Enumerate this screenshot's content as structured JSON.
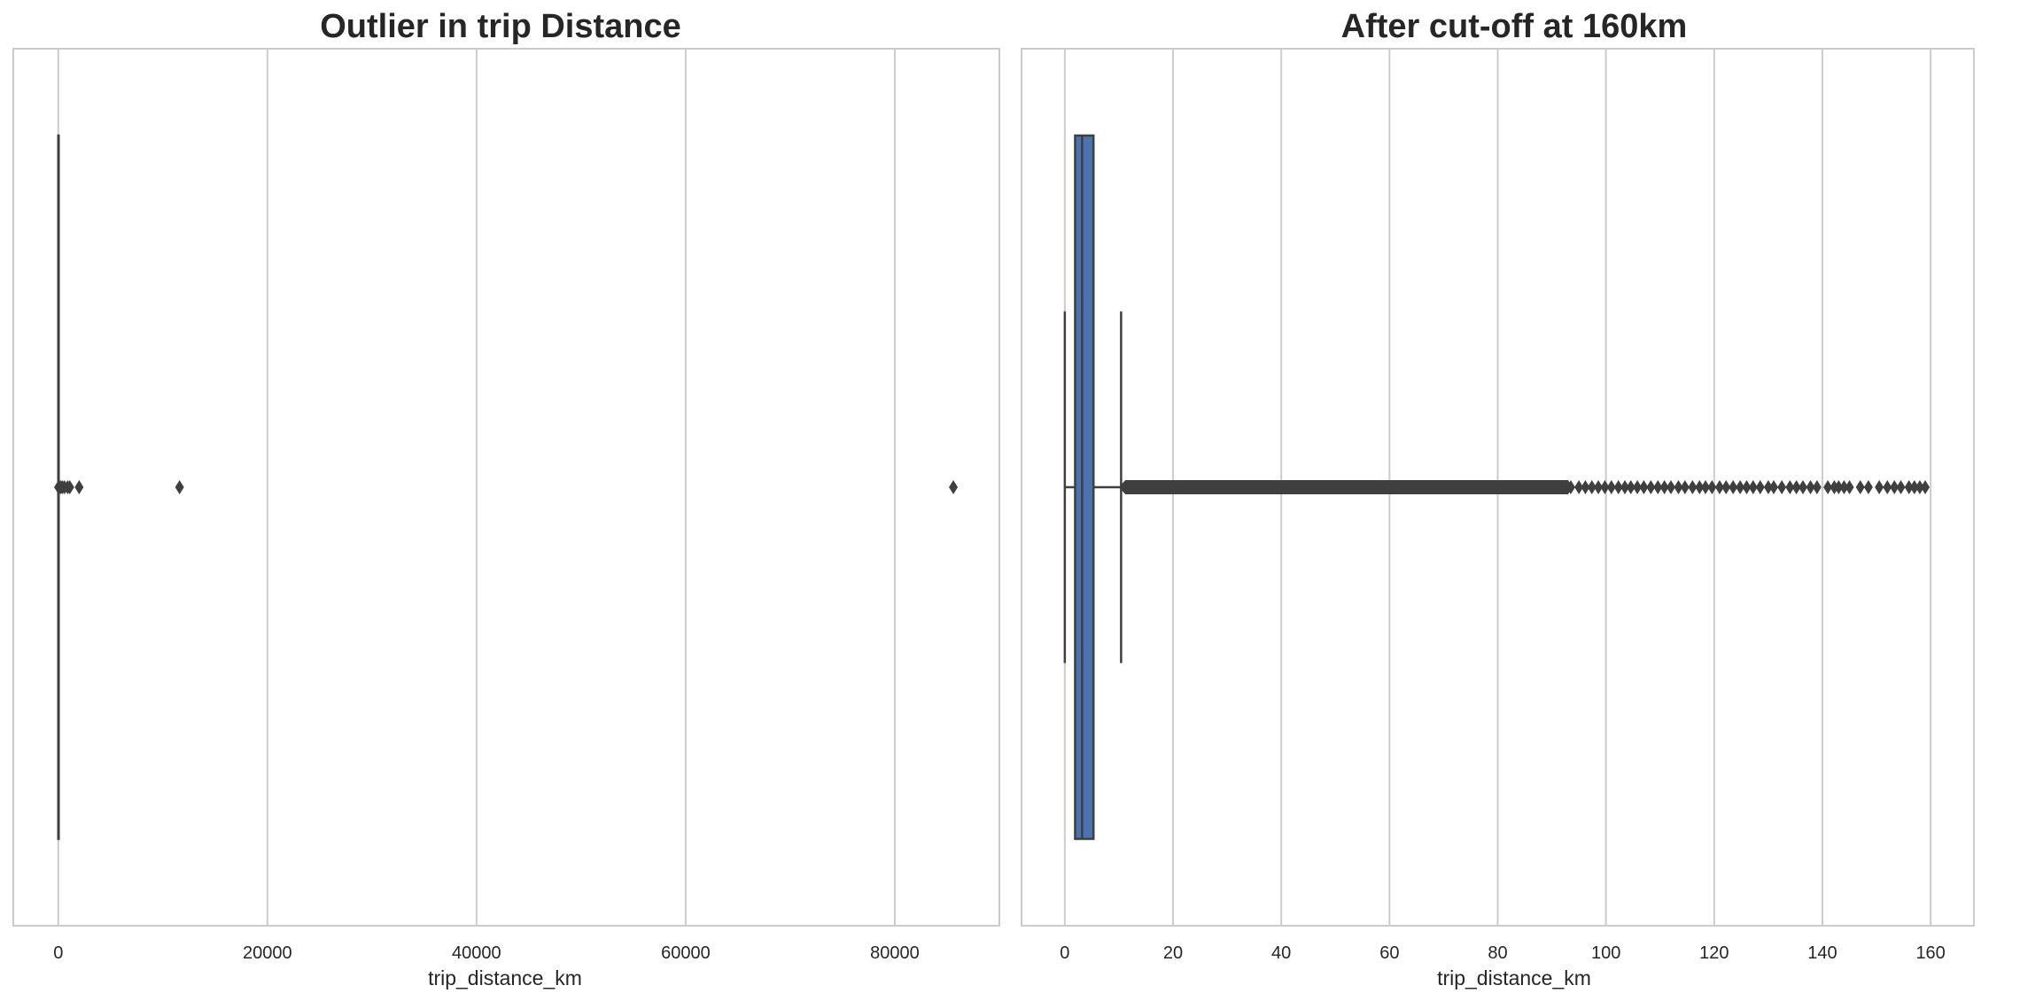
{
  "chart_data": [
    {
      "type": "boxplot",
      "orientation": "horizontal",
      "title": "Outlier in trip Distance",
      "xlabel": "trip_distance_km",
      "ylabel": "",
      "xlim": [
        -4300,
        90000
      ],
      "xticks": [
        0,
        20000,
        40000,
        60000,
        80000
      ],
      "xtick_labels": [
        "0",
        "20000",
        "40000",
        "60000",
        "80000"
      ],
      "grid": "vertical",
      "box": {
        "q1": 1.9,
        "median": 3.2,
        "q3": 5.3,
        "whisker_low": 0,
        "whisker_high": 10.4
      },
      "outliers": [
        20,
        60,
        120,
        250,
        400,
        600,
        900,
        1100,
        2000,
        11600,
        85600
      ],
      "box_color": "#4c72b0",
      "line_color": "#3f3f3f"
    },
    {
      "type": "boxplot",
      "orientation": "horizontal",
      "title": "After cut-off at 160km",
      "xlabel": "trip_distance_km",
      "ylabel": "",
      "xlim": [
        -8,
        168
      ],
      "xticks": [
        0,
        20,
        40,
        60,
        80,
        100,
        120,
        140,
        160
      ],
      "xtick_labels": [
        "0",
        "20",
        "40",
        "60",
        "80",
        "100",
        "120",
        "140",
        "160"
      ],
      "grid": "vertical",
      "box": {
        "q1": 1.9,
        "median": 3.2,
        "q3": 5.3,
        "whisker_low": 0,
        "whisker_high": 10.4
      },
      "outlier_dense_range": [
        10.4,
        93
      ],
      "outliers": [
        93.5,
        95,
        96.2,
        97.4,
        98.6,
        99.8,
        101,
        102.3,
        103.5,
        104.6,
        105.8,
        107,
        108.3,
        109.6,
        110.8,
        112,
        113.4,
        114.6,
        116,
        117.3,
        118.4,
        119.6,
        121,
        122.2,
        123.5,
        124.8,
        126,
        127.2,
        128.5,
        130,
        131,
        132.5,
        134,
        135.2,
        136.4,
        137.8,
        139,
        141,
        142.2,
        143,
        144,
        145,
        147,
        148.5,
        150.5,
        152,
        153.3,
        154.5,
        156,
        157,
        158,
        159
      ],
      "box_color": "#4c72b0",
      "line_color": "#3f3f3f"
    }
  ]
}
